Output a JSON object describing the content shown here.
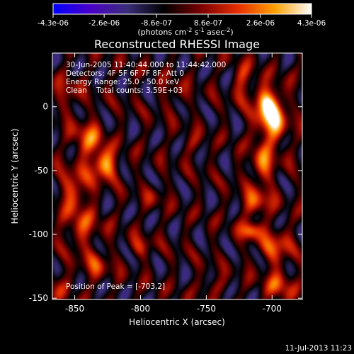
{
  "chart_data": {
    "type": "heatmap",
    "title": "Reconstructed RHESSI Image",
    "xlabel": "Heliocentric X (arcsec)",
    "ylabel": "Heliocentric Y (arcsec)",
    "xlim": [
      -867,
      -677
    ],
    "ylim": [
      -151,
      42
    ],
    "x_ticks": [
      -850,
      -800,
      -750,
      -700
    ],
    "y_ticks": [
      0,
      -50,
      -100,
      -150
    ],
    "x_tick_labels": [
      "-850",
      "-800",
      "-750",
      "-700"
    ],
    "y_tick_labels": [
      "0",
      "-50",
      "-100",
      "-150"
    ],
    "colorbar": {
      "ticks": [
        -4.3e-06,
        -2.6e-06,
        -8.6e-07,
        8.6e-07,
        2.6e-06,
        4.3e-06
      ],
      "tick_labels": [
        "-4.3e-06",
        "-2.6e-06",
        "-8.6e-07",
        "8.6e-07",
        "2.6e-06",
        "4.3e-06"
      ],
      "unit_label": "(photons cm",
      "unit_sup1": "-2",
      "unit_mid": " s",
      "unit_sup2": "-1",
      "unit_mid2": " asec",
      "unit_sup3": "-2",
      "unit_end": ")",
      "colors": [
        "#0000ff",
        "#4b00c8",
        "#3a2e7a",
        "#000000",
        "#7a0000",
        "#e62d00",
        "#ff9f00",
        "#ffffff"
      ]
    },
    "annotations": [
      "30-Jun-2005 11:40:44.000 to 11:44:42.000",
      "Detectors: 4F 5F 6F 7F 8F, Att 0",
      "Energy Range: 25.0 - 50.0 keV",
      "Clean    Total counts: 3.59E+03"
    ],
    "peak_label": "Position of Peak = [-703,2]",
    "peak": {
      "x": -703,
      "y": 2
    },
    "sources": [
      {
        "x": -703,
        "y": 2,
        "sx": 7,
        "sy": 10,
        "amp": 1.0
      },
      {
        "x": -700,
        "y": -15,
        "sx": 8,
        "sy": 10,
        "amp": 0.75
      },
      {
        "x": -707,
        "y": -45,
        "sx": 7,
        "sy": 10,
        "amp": 0.6
      },
      {
        "x": -712,
        "y": -75,
        "sx": 8,
        "sy": 8,
        "amp": 0.55
      },
      {
        "x": -717,
        "y": -97,
        "sx": 5,
        "sy": 5,
        "amp": 0.75
      },
      {
        "x": -698,
        "y": -110,
        "sx": 8,
        "sy": 10,
        "amp": 0.55
      },
      {
        "x": -695,
        "y": -140,
        "sx": 8,
        "sy": 8,
        "amp": 0.5
      },
      {
        "x": -722,
        "y": 20,
        "sx": 5,
        "sy": 10,
        "amp": 0.45
      },
      {
        "x": -828,
        "y": -45,
        "sx": 7,
        "sy": 8,
        "amp": 0.85
      },
      {
        "x": -840,
        "y": -25,
        "sx": 8,
        "sy": 10,
        "amp": 0.6
      },
      {
        "x": -850,
        "y": -65,
        "sx": 8,
        "sy": 12,
        "amp": 0.55
      },
      {
        "x": -845,
        "y": -95,
        "sx": 10,
        "sy": 10,
        "amp": 0.45
      },
      {
        "x": -835,
        "y": -125,
        "sx": 8,
        "sy": 8,
        "amp": 0.4
      },
      {
        "x": -855,
        "y": 10,
        "sx": 6,
        "sy": 10,
        "amp": 0.35
      },
      {
        "x": -800,
        "y": -110,
        "sx": 6,
        "sy": 6,
        "amp": 0.35
      },
      {
        "x": -790,
        "y": -70,
        "sx": 5,
        "sy": 6,
        "amp": 0.25
      },
      {
        "x": -760,
        "y": -30,
        "sx": 6,
        "sy": 6,
        "amp": 0.25
      },
      {
        "x": -745,
        "y": -140,
        "sx": 8,
        "sy": 5,
        "amp": 0.3
      },
      {
        "x": -775,
        "y": 10,
        "sx": 6,
        "sy": 8,
        "amp": 0.25
      },
      {
        "x": -865,
        "y": -140,
        "sx": 8,
        "sy": 8,
        "amp": 0.3
      }
    ]
  },
  "footer": {
    "timestamp": "11-Jul-2013 11:23"
  }
}
